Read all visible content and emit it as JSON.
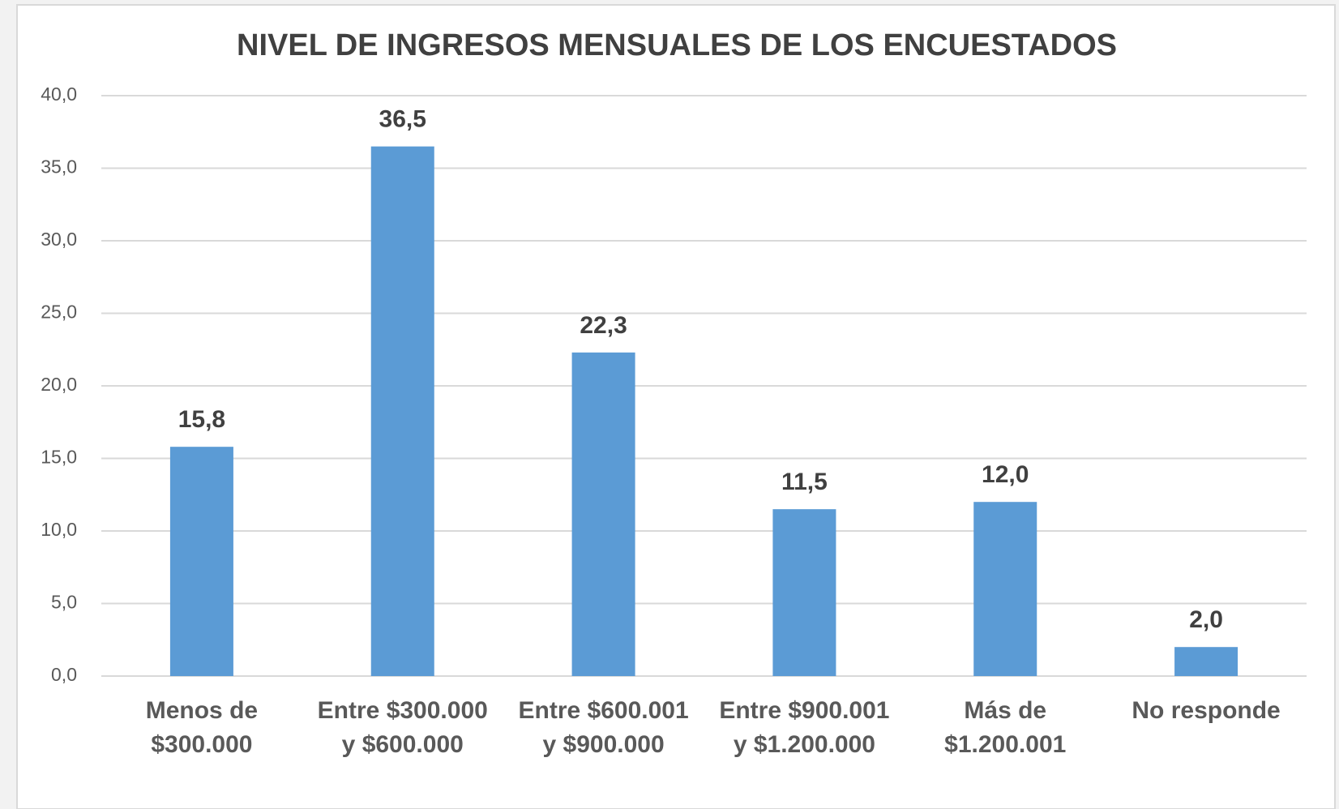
{
  "chart_data": {
    "type": "bar",
    "title": "NIVEL DE INGRESOS MENSUALES DE LOS ENCUESTADOS",
    "categories": [
      "Menos de $300.000",
      "Entre $300.000 y $600.000",
      "Entre $600.001 y $900.000",
      "Entre $900.001 y $1.200.000",
      "Más de $1.200.001",
      "No responde"
    ],
    "values": [
      15.8,
      36.5,
      22.3,
      11.5,
      12.0,
      2.0
    ],
    "value_labels": [
      "15,8",
      "36,5",
      "22,3",
      "11,5",
      "12,0",
      "2,0"
    ],
    "color": "#5b9bd5",
    "ylim": [
      0,
      40
    ],
    "yticks": [
      {
        "value": 0,
        "label": "0,0"
      },
      {
        "value": 5,
        "label": "5,0"
      },
      {
        "value": 10,
        "label": "10,0"
      },
      {
        "value": 15,
        "label": "15,0"
      },
      {
        "value": 20,
        "label": "20,0"
      },
      {
        "value": 25,
        "label": "25,0"
      },
      {
        "value": 30,
        "label": "30,0"
      },
      {
        "value": 35,
        "label": "35,0"
      },
      {
        "value": 40,
        "label": "40,0"
      }
    ],
    "grid": true
  }
}
